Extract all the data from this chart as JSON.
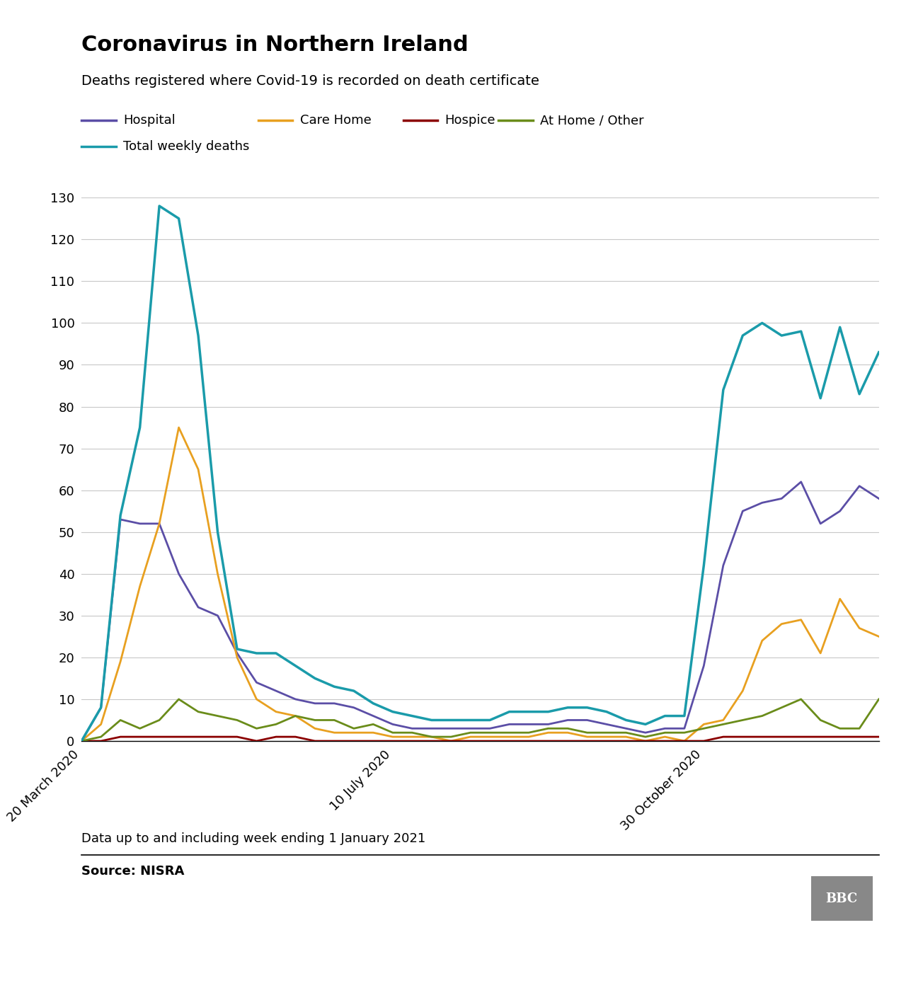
{
  "title": "Coronavirus in Northern Ireland",
  "subtitle": "Deaths registered where Covid-19 is recorded on death certificate",
  "footer_note": "Data up to and including week ending 1 January 2021",
  "source": "Source: NISRA",
  "colors": {
    "hospital": "#5b4ea6",
    "care_home": "#e8a020",
    "hospice": "#8b0000",
    "at_home": "#6a8c1a",
    "total": "#1a9baa"
  },
  "x_tick_labels": [
    "20 March 2020",
    "10 July 2020",
    "30 October 2020"
  ],
  "x_tick_positions": [
    0,
    16,
    32
  ],
  "ylim": [
    0,
    130
  ],
  "yticks": [
    0,
    10,
    20,
    30,
    40,
    50,
    60,
    70,
    80,
    90,
    100,
    110,
    120,
    130
  ],
  "hospital": [
    0,
    8,
    53,
    52,
    52,
    40,
    32,
    30,
    21,
    14,
    12,
    10,
    9,
    9,
    8,
    6,
    4,
    3,
    3,
    3,
    3,
    3,
    4,
    4,
    4,
    5,
    5,
    4,
    3,
    2,
    3,
    3,
    18,
    42,
    55,
    57,
    58,
    62,
    52,
    55,
    61,
    58
  ],
  "care_home": [
    0,
    4,
    19,
    37,
    52,
    75,
    65,
    40,
    20,
    10,
    7,
    6,
    3,
    2,
    2,
    2,
    1,
    1,
    1,
    0,
    1,
    1,
    1,
    1,
    2,
    2,
    1,
    1,
    1,
    0,
    1,
    0,
    4,
    5,
    12,
    24,
    28,
    29,
    21,
    34,
    27,
    25
  ],
  "hospice": [
    0,
    0,
    1,
    1,
    1,
    1,
    1,
    1,
    1,
    0,
    1,
    1,
    0,
    0,
    0,
    0,
    0,
    0,
    0,
    0,
    0,
    0,
    0,
    0,
    0,
    0,
    0,
    0,
    0,
    0,
    0,
    0,
    0,
    1,
    1,
    1,
    1,
    1,
    1,
    1,
    1,
    1
  ],
  "at_home": [
    0,
    1,
    5,
    3,
    5,
    10,
    7,
    6,
    5,
    3,
    4,
    6,
    5,
    5,
    3,
    4,
    2,
    2,
    1,
    1,
    2,
    2,
    2,
    2,
    3,
    3,
    2,
    2,
    2,
    1,
    2,
    2,
    3,
    4,
    5,
    6,
    8,
    10,
    5,
    3,
    3,
    10
  ],
  "total": [
    0,
    8,
    54,
    75,
    128,
    125,
    97,
    50,
    22,
    21,
    21,
    18,
    15,
    13,
    12,
    9,
    7,
    6,
    5,
    5,
    5,
    5,
    7,
    7,
    7,
    8,
    8,
    7,
    5,
    4,
    6,
    6,
    42,
    84,
    97,
    100,
    97,
    98,
    82,
    99,
    83,
    93
  ]
}
